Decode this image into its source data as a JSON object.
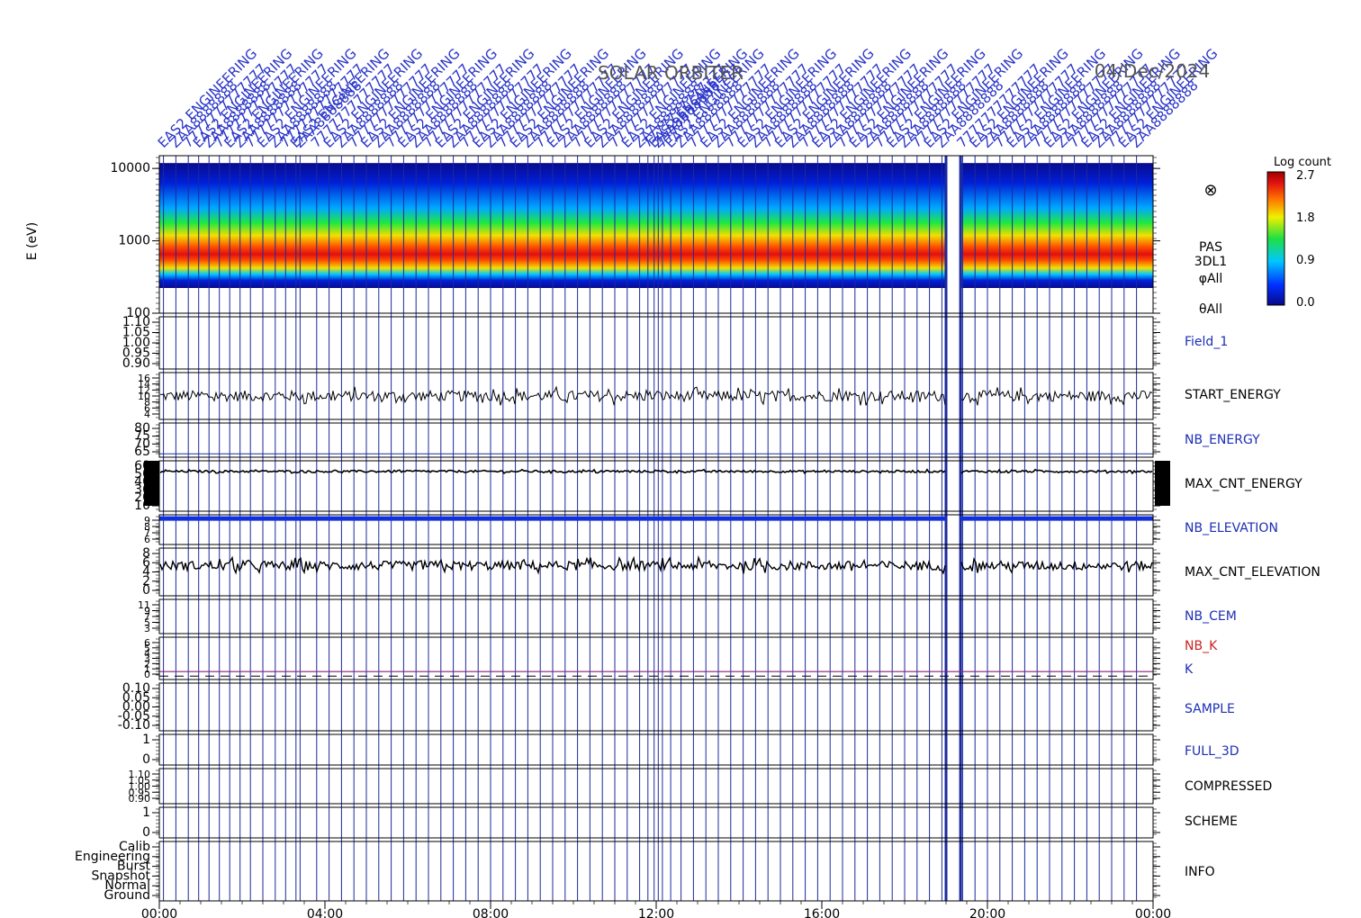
{
  "figure": {
    "mission": "SOLAR ORBITER",
    "date": "04/Dec/2024",
    "spectrogram_label_lines": [
      "PAS",
      "3DL1",
      "φAll",
      "θAll"
    ],
    "colorbar": {
      "title": "Log count",
      "ticks": [
        "2.7",
        "1.8",
        "0.9",
        "0.0"
      ]
    },
    "annotation_texts": [
      "EAS2 ENGINEERING",
      "ZAA8888888",
      "7777777777777"
    ],
    "colors": {
      "frame": "#000000",
      "event_lines": "#1b2a9e",
      "panel_label_blue": "#1c2fb5",
      "panel_label_red": "#cc2222",
      "k_line": "#8a1f7a",
      "annotation": "#2a35c8",
      "spectrogram_background": "#0a0a8c"
    }
  },
  "chart_data": {
    "type": "multi-panel time series",
    "x_axis": {
      "range": [
        "00:00",
        "24:00"
      ],
      "tick_labels": [
        "00:00",
        "04:00",
        "08:00",
        "12:00",
        "16:00",
        "20:00",
        "00:00"
      ]
    },
    "data_gap_hours": [
      19.0,
      19.35
    ],
    "event_line_hours": [
      0.1,
      0.4,
      0.7,
      0.95,
      1.2,
      1.45,
      1.7,
      1.95,
      2.2,
      2.5,
      2.8,
      3.05,
      3.3,
      3.4,
      3.8,
      4.1,
      4.4,
      4.7,
      5.0,
      5.3,
      5.6,
      5.9,
      6.2,
      6.5,
      6.8,
      7.1,
      7.4,
      7.7,
      8.0,
      8.3,
      8.6,
      8.9,
      9.2,
      9.5,
      9.8,
      10.1,
      10.4,
      10.7,
      11.0,
      11.3,
      11.6,
      11.8,
      11.95,
      12.05,
      12.15,
      12.35,
      12.6,
      12.9,
      13.2,
      13.5,
      13.8,
      14.1,
      14.4,
      14.7,
      15.0,
      15.3,
      15.6,
      15.9,
      16.2,
      16.5,
      16.8,
      17.1,
      17.4,
      17.7,
      18.0,
      18.3,
      18.6,
      18.9,
      19.4,
      19.7,
      20.0,
      20.3,
      20.6,
      20.9,
      21.2,
      21.5,
      21.8,
      22.1,
      22.4,
      22.7,
      23.0,
      23.3,
      23.6
    ],
    "panels": [
      {
        "id": "PAS",
        "type": "heatmap",
        "ylabel": "E (eV)",
        "y_scale": "log",
        "y_range": [
          100,
          15000
        ],
        "y_tick_labels": [
          "10000",
          "1000",
          "100"
        ],
        "color_range": [
          0.0,
          2.7
        ],
        "peak_energy_ev": 1000,
        "flux_upper_edge_ev": 10000,
        "flux_lower_edge_ev": 250
      },
      {
        "id": "Field_1",
        "type": "line",
        "label": "Field_1",
        "label_color": "blue",
        "y_tick_labels": [
          "1.10",
          "1.05",
          "1.00",
          "0.95",
          "0.90"
        ],
        "y_range": [
          0.88,
          1.12
        ]
      },
      {
        "id": "START_ENERGY",
        "type": "line",
        "label": "START_ENERGY",
        "label_color": "black",
        "y_tick_labels": [
          "16",
          "14",
          "12",
          "10",
          "8",
          "6",
          "4"
        ],
        "y_range": [
          3,
          17
        ],
        "typical_value": 10,
        "noise_amplitude": 1.6
      },
      {
        "id": "NB_ENERGY",
        "type": "line",
        "label": "NB_ENERGY",
        "label_color": "blue",
        "y_tick_labels": [
          "80",
          "75",
          "70",
          "65"
        ],
        "y_range": [
          62,
          82
        ],
        "constant_value": 64
      },
      {
        "id": "MAX_CNT_ENERGY",
        "type": "line",
        "label": "MAX_CNT_ENERGY",
        "label_color": "black",
        "y_tick_labels": [
          "60",
          "50",
          "40",
          "30",
          "20",
          "10"
        ],
        "y_range": [
          5,
          62
        ],
        "typical_value": 50,
        "noise_amplitude": 1.2
      },
      {
        "id": "NB_ELEVATION",
        "type": "line",
        "label": "NB_ELEVATION",
        "label_color": "blue",
        "y_tick_labels": [
          "9",
          "8",
          "7",
          "6"
        ],
        "y_range": [
          5.5,
          9.5
        ],
        "constant_value": 9
      },
      {
        "id": "MAX_CNT_ELEVATION",
        "type": "line",
        "label": "MAX_CNT_ELEVATION",
        "label_color": "black",
        "y_tick_labels": [
          "8",
          "6",
          "4",
          "2",
          "0"
        ],
        "y_range": [
          -0.5,
          9
        ],
        "typical_value": 5.5
      },
      {
        "id": "NB_CEM",
        "type": "line",
        "label": "NB_CEM",
        "label_color": "blue",
        "y_tick_labels": [
          "11",
          "9",
          "7",
          "5",
          "3"
        ],
        "y_range": [
          2,
          11.5
        ]
      },
      {
        "id": "NB_K_K",
        "type": "line",
        "labels": [
          {
            "text": "NB_K",
            "color": "red"
          },
          {
            "text": "K",
            "color": "blue"
          }
        ],
        "y_tick_labels": [
          "6",
          "5",
          "4",
          "3",
          "2",
          "1",
          "0"
        ],
        "y_range": [
          -0.2,
          6.2
        ],
        "k_value": 1
      },
      {
        "id": "SAMPLE",
        "type": "line",
        "label": "SAMPLE",
        "label_color": "blue",
        "y_tick_labels": [
          "0.10",
          "0.05",
          "0.00",
          "-0.05",
          "-0.10"
        ],
        "y_range": [
          -0.12,
          0.12
        ]
      },
      {
        "id": "FULL_3D",
        "type": "line",
        "label": "FULL_3D",
        "label_color": "blue",
        "y_tick_labels": [
          "1",
          "0"
        ],
        "y_range": [
          -0.5,
          2
        ]
      },
      {
        "id": "COMPRESSED",
        "type": "line",
        "label": "COMPRESSED",
        "label_color": "black",
        "y_tick_labels": [
          "1.10",
          "1.05",
          "1.00",
          "0.95",
          "0.90"
        ],
        "y_range": [
          0.88,
          1.12
        ]
      },
      {
        "id": "SCHEME",
        "type": "line",
        "label": "SCHEME",
        "label_color": "black",
        "y_tick_labels": [
          "1",
          "0"
        ],
        "y_range": [
          -0.3,
          1.5
        ]
      },
      {
        "id": "INFO",
        "type": "categorical",
        "label": "INFO",
        "label_color": "black",
        "y_tick_labels": [
          "Calib",
          "Engineering",
          "Burst",
          "Snapshot",
          "Normal",
          "Ground"
        ]
      }
    ]
  }
}
